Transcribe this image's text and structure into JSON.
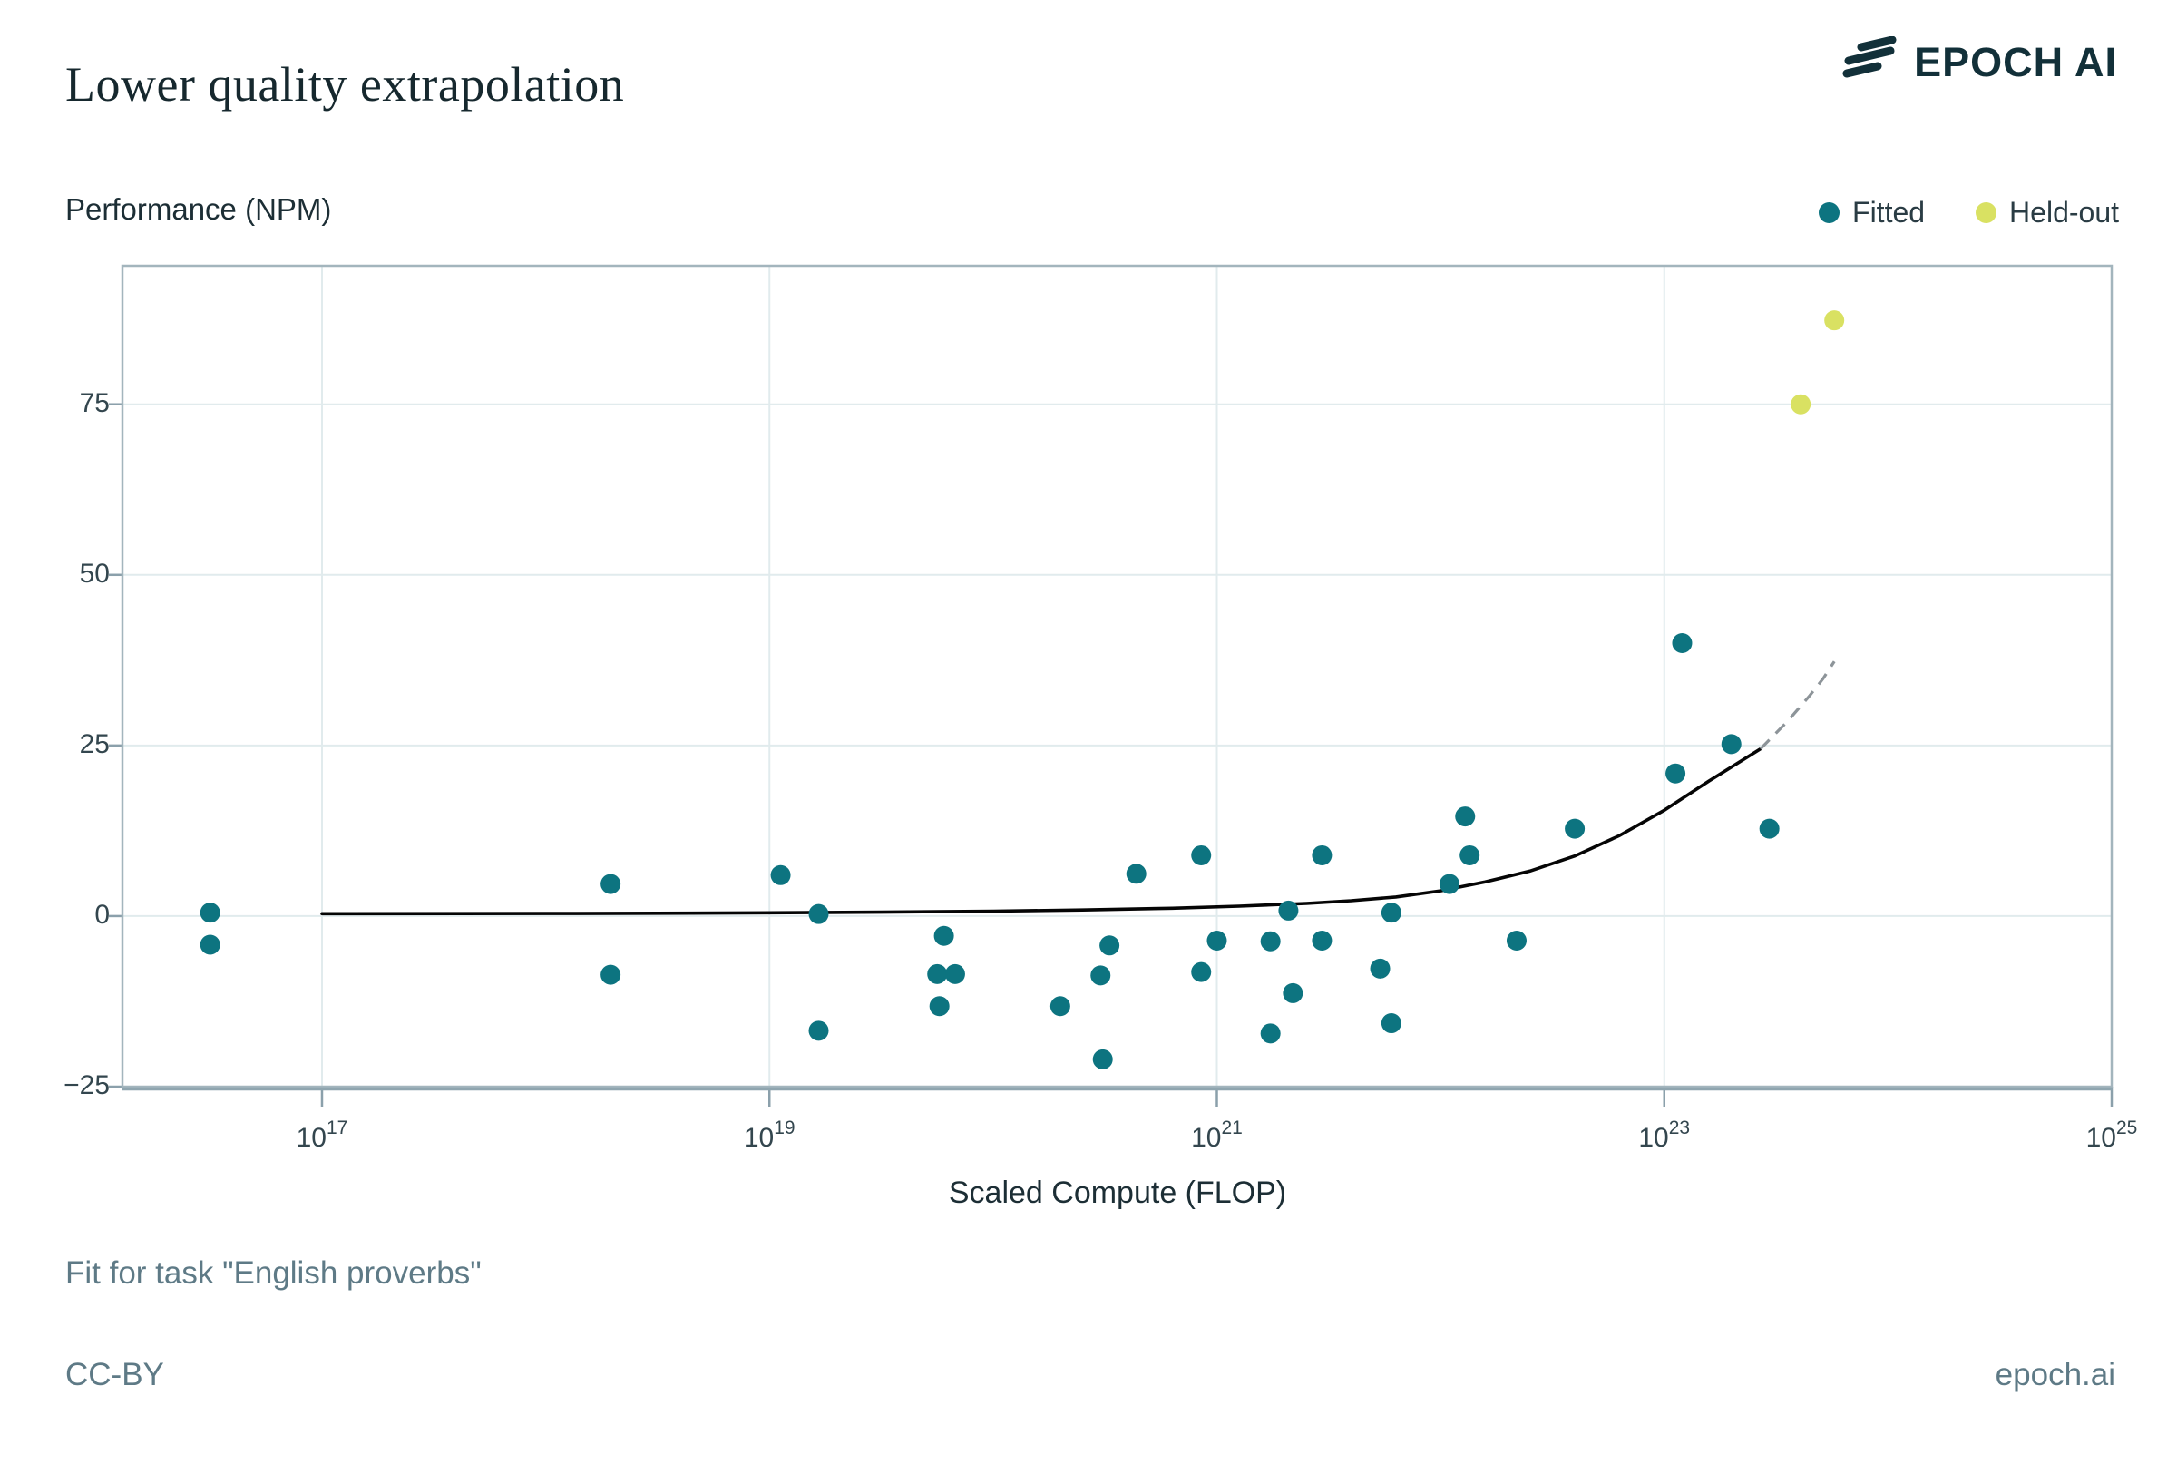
{
  "header": {
    "title": "Lower quality extrapolation",
    "brand": "EPOCH AI"
  },
  "footer": {
    "fit_note": "Fit for task \"English proverbs\"",
    "license": "CC-BY",
    "site": "epoch.ai"
  },
  "colors": {
    "fitted": "#0d7480",
    "held_out": "#d9e162",
    "curve_solid": "#050505",
    "curve_dashed": "#8d9499",
    "gridline": "#e1ebed",
    "plot_border": "#a3b5bd",
    "axis_spine": "#8fa5af",
    "tick": "#8ba0ab",
    "brand_color": "#123039"
  },
  "chart_data": {
    "type": "scatter",
    "title": "Lower quality extrapolation",
    "xlabel": "Scaled Compute (FLOP)",
    "ylabel": "Performance (NPM)",
    "x_scale": "log10",
    "xlim_log10": [
      16.108,
      25
    ],
    "ylim": [
      -25,
      95.3
    ],
    "grid": true,
    "legend_position": "top-right",
    "xticks": [
      {
        "base": "10",
        "exp": "17",
        "log10": 17
      },
      {
        "base": "10",
        "exp": "19",
        "log10": 19
      },
      {
        "base": "10",
        "exp": "21",
        "log10": 21
      },
      {
        "base": "10",
        "exp": "23",
        "log10": 23
      },
      {
        "base": "10",
        "exp": "25",
        "log10": 25
      }
    ],
    "yticks": [
      {
        "label": "75",
        "value": 75
      },
      {
        "label": "50",
        "value": 50
      },
      {
        "label": "25",
        "value": 25
      },
      {
        "label": "0",
        "value": 0
      },
      {
        "label": "−25",
        "value": -25
      }
    ],
    "series": [
      {
        "name": "Fitted",
        "color": "#0d7480",
        "marker": "circle",
        "points_x_log10_y": [
          [
            16.5,
            0.5
          ],
          [
            16.5,
            -4.2
          ],
          [
            18.29,
            4.7
          ],
          [
            18.29,
            -8.6
          ],
          [
            19.05,
            6.0
          ],
          [
            19.22,
            0.3
          ],
          [
            19.22,
            -16.8
          ],
          [
            19.78,
            -2.9
          ],
          [
            19.75,
            -8.5
          ],
          [
            19.83,
            -8.5
          ],
          [
            19.76,
            -13.2
          ],
          [
            20.3,
            -13.2
          ],
          [
            20.49,
            -21.0
          ],
          [
            20.48,
            -8.7
          ],
          [
            20.52,
            -4.3
          ],
          [
            20.64,
            6.2
          ],
          [
            20.93,
            8.9
          ],
          [
            21.0,
            -3.6
          ],
          [
            20.93,
            -8.2
          ],
          [
            21.24,
            -3.7
          ],
          [
            21.32,
            0.8
          ],
          [
            21.34,
            -11.3
          ],
          [
            21.24,
            -17.2
          ],
          [
            21.47,
            8.9
          ],
          [
            21.47,
            -3.6
          ],
          [
            21.78,
            0.5
          ],
          [
            21.73,
            -7.7
          ],
          [
            21.78,
            -15.7
          ],
          [
            22.04,
            4.7
          ],
          [
            22.11,
            14.6
          ],
          [
            22.13,
            8.9
          ],
          [
            22.34,
            -3.6
          ],
          [
            22.6,
            12.8
          ],
          [
            23.05,
            20.9
          ],
          [
            23.08,
            40.0
          ],
          [
            23.3,
            25.2
          ],
          [
            23.47,
            12.8
          ]
        ]
      },
      {
        "name": "Held-out",
        "color": "#d9e162",
        "marker": "circle",
        "points_x_log10_y": [
          [
            23.61,
            75.0
          ],
          [
            23.76,
            87.3
          ]
        ]
      }
    ],
    "fit_curve": {
      "solid_color": "#050505",
      "dashed_color": "#8d9499",
      "solid_x_log10_y": [
        [
          17.0,
          0.35
        ],
        [
          18.0,
          0.38
        ],
        [
          18.5,
          0.42
        ],
        [
          19.0,
          0.48
        ],
        [
          19.5,
          0.58
        ],
        [
          20.0,
          0.72
        ],
        [
          20.4,
          0.9
        ],
        [
          20.8,
          1.15
        ],
        [
          21.1,
          1.45
        ],
        [
          21.4,
          1.85
        ],
        [
          21.6,
          2.25
        ],
        [
          21.8,
          2.8
        ],
        [
          22.0,
          3.7
        ],
        [
          22.2,
          5.0
        ],
        [
          22.4,
          6.6
        ],
        [
          22.6,
          8.8
        ],
        [
          22.8,
          11.8
        ],
        [
          23.0,
          15.5
        ],
        [
          23.2,
          19.8
        ],
        [
          23.43,
          24.5
        ]
      ],
      "dashed_x_log10_y": [
        [
          23.43,
          24.5
        ],
        [
          23.55,
          28.5
        ],
        [
          23.65,
          32.3
        ],
        [
          23.71,
          34.8
        ],
        [
          23.76,
          37.3
        ]
      ]
    }
  }
}
